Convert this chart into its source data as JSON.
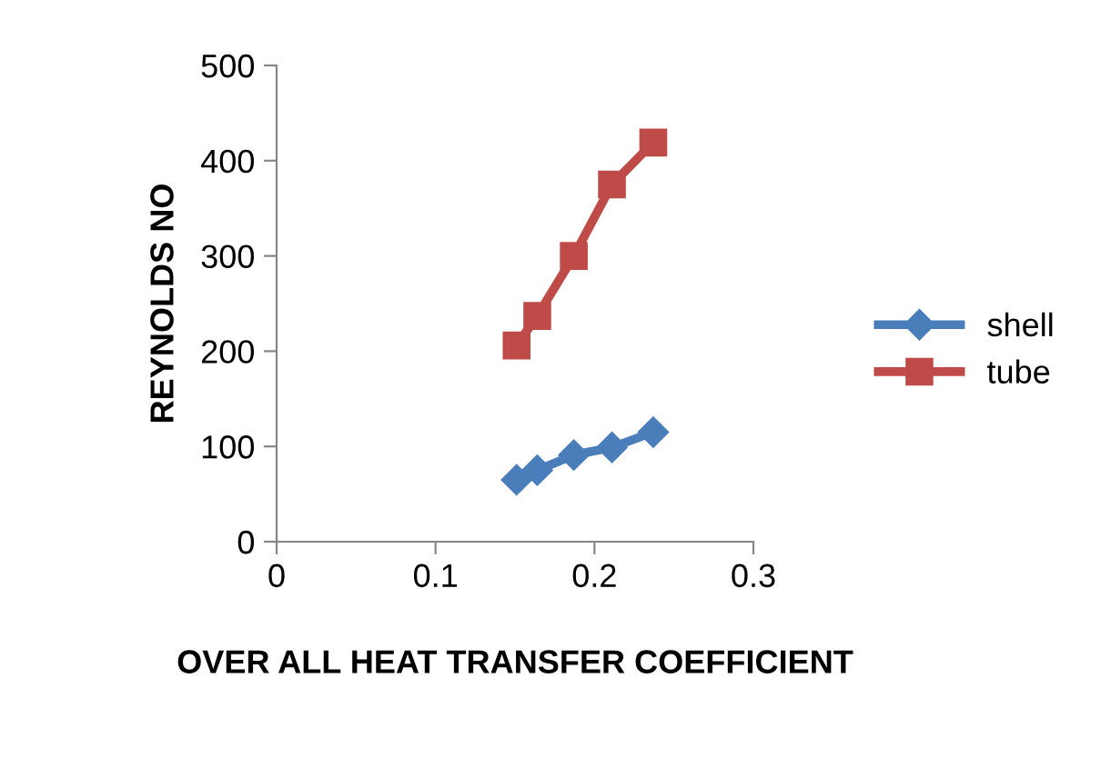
{
  "chart_data": {
    "type": "line",
    "xlabel": "OVER ALL HEAT TRANSFER COEFFICIENT",
    "ylabel": "REYNOLDS NO",
    "xlim": [
      0,
      0.3
    ],
    "xticks": [
      0,
      0.1,
      0.2,
      0.3
    ],
    "ylim": [
      0,
      500
    ],
    "yticks": [
      0,
      100,
      200,
      300,
      400,
      500
    ],
    "grid": false,
    "legend": "right",
    "series": [
      {
        "name": "shell",
        "color": "#4a7ebb",
        "marker": "diamond",
        "x": [
          0.151,
          0.164,
          0.187,
          0.211,
          0.237
        ],
        "values": [
          65,
          75,
          91,
          99,
          115
        ]
      },
      {
        "name": "tube",
        "color": "#be4b48",
        "marker": "square",
        "x": [
          0.151,
          0.164,
          0.187,
          0.211,
          0.237
        ],
        "values": [
          206,
          237,
          300,
          375,
          419
        ]
      }
    ]
  }
}
